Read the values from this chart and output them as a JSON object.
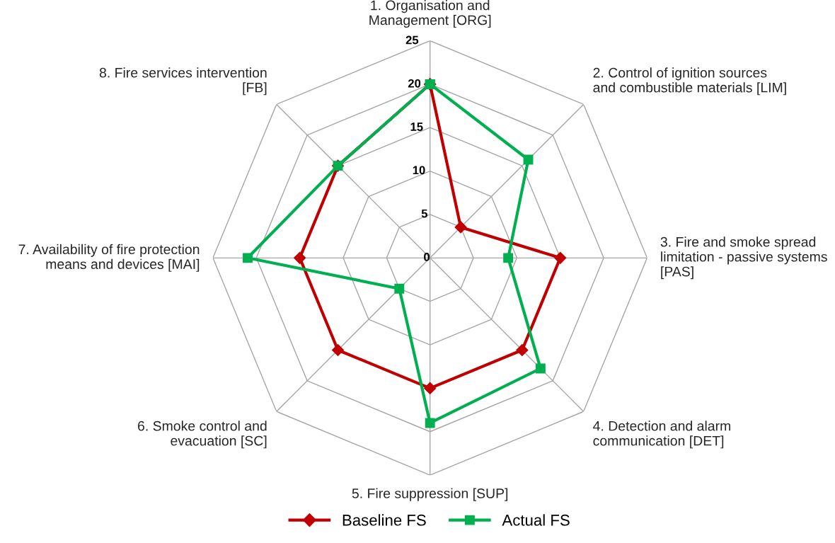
{
  "chart_data": {
    "type": "radar",
    "categories": [
      "1. Organisation and\nManagement [ORG]",
      "2. Control of ignition sources\nand combustible materials [LIM]",
      "3. Fire and smoke spread\nlimitation - passive systems\n[PAS]",
      "4. Detection and alarm\ncommunication [DET]",
      "5. Fire suppression [SUP]",
      "6. Smoke control and\nevacuation [SC]",
      "7. Availability of fire protection\nmeans and devices [MAI]",
      "8. Fire services intervention\n[FB]"
    ],
    "series": [
      {
        "name": "Baseline FS",
        "color": "#c00000",
        "marker": "diamond",
        "values": [
          20,
          5,
          15,
          15,
          15,
          15,
          15,
          15
        ]
      },
      {
        "name": "Actual FS",
        "color": "#00b050",
        "marker": "square",
        "values": [
          20,
          16,
          9,
          18,
          19,
          5,
          21,
          15
        ]
      }
    ],
    "ylim": [
      0,
      25
    ],
    "yticks": [
      0,
      5,
      10,
      15,
      20,
      25
    ],
    "grid": true,
    "legend": "bottom"
  }
}
